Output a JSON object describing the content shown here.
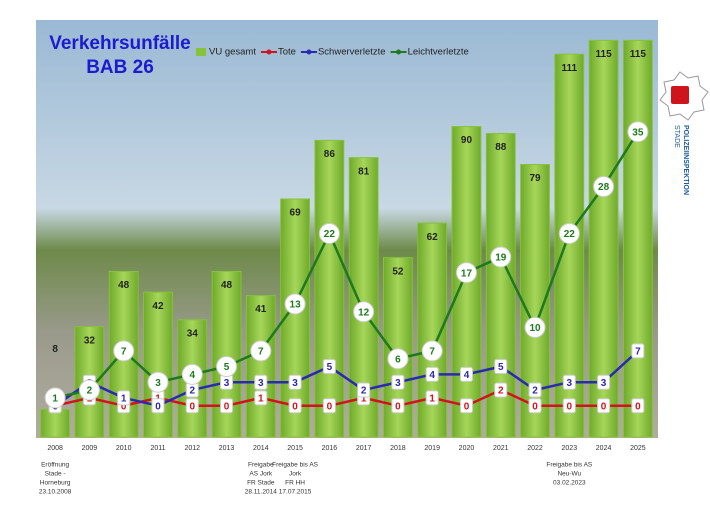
{
  "chart_data": {
    "type": "bar-line",
    "title": [
      "Verkehrsunfälle",
      "BAB 26"
    ],
    "categories": [
      "2008",
      "2009",
      "2010",
      "2011",
      "2012",
      "2013",
      "2014",
      "2015",
      "2016",
      "2017",
      "2018",
      "2019",
      "2020",
      "2021",
      "2022",
      "2023",
      "2024",
      "2025"
    ],
    "series": [
      {
        "name": "VU gesamt",
        "color": "#86c23a",
        "type": "bar",
        "values": [
          8,
          32,
          48,
          42,
          34,
          48,
          41,
          69,
          86,
          81,
          52,
          62,
          90,
          88,
          79,
          111,
          115,
          115
        ]
      },
      {
        "name": "Tote",
        "color": "#d0141e",
        "type": "line",
        "axis": "y2",
        "values": [
          0,
          1,
          0,
          1,
          0,
          0,
          1,
          0,
          0,
          1,
          0,
          1,
          0,
          2,
          0,
          0,
          0,
          0
        ]
      },
      {
        "name": "Schwerverletzte",
        "color": "#2a2ab0",
        "type": "line",
        "axis": "y2",
        "values": [
          0,
          3,
          1,
          0,
          2,
          3,
          3,
          3,
          5,
          2,
          3,
          4,
          4,
          5,
          2,
          3,
          3,
          7
        ]
      },
      {
        "name": "Leichtverletzte",
        "color": "#1e7a1e",
        "type": "line",
        "axis": "y2",
        "values": [
          1,
          2,
          7,
          3,
          4,
          5,
          7,
          13,
          22,
          12,
          6,
          7,
          17,
          19,
          10,
          22,
          28,
          35
        ]
      }
    ],
    "ylim": [
      0,
      118
    ],
    "y2lim": [
      -4,
      48
    ],
    "x_notes": [
      [
        "Eröffnung",
        "Stade -",
        "Horneburg",
        "23.10.2008"
      ],
      null,
      null,
      null,
      null,
      null,
      [
        "Freigabe",
        "AS Jork",
        "FR Stade",
        "28.11.2014"
      ],
      [
        "Freigabe bis AS",
        "Jork",
        "FR HH",
        "17.07.2015"
      ],
      null,
      null,
      null,
      null,
      null,
      null,
      null,
      [
        "Freigabe bis AS",
        "Neu-Wu",
        "03.02.2023"
      ],
      null,
      null
    ]
  },
  "logo": {
    "lines": [
      "POLIZEIINSPEKTION",
      "STADE"
    ]
  }
}
